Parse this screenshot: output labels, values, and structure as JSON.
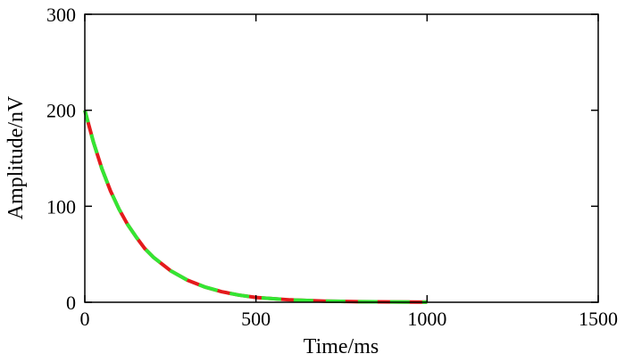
{
  "chart_data": {
    "type": "line",
    "title": "",
    "xlabel": "Time/ms",
    "ylabel": "Amplitude/nV",
    "xlim": [
      0,
      1500
    ],
    "ylim": [
      0,
      300
    ],
    "xticks": [
      0,
      500,
      1000,
      1500
    ],
    "yticks": [
      0,
      100,
      200,
      300
    ],
    "xtick_labels": [
      "0",
      "500",
      "1000",
      "1500"
    ],
    "ytick_labels": [
      "0",
      "100",
      "200",
      "300"
    ],
    "grid": false,
    "series": [
      {
        "color": "#e41a1c",
        "dash": "solid-dashed",
        "x": [
          0,
          25,
          50,
          75,
          100,
          125,
          150,
          175,
          200,
          250,
          300,
          350,
          400,
          450,
          500,
          600,
          700,
          800,
          900,
          1000
        ],
        "y": [
          200,
          167,
          139,
          116,
          97,
          81,
          68,
          56,
          47,
          33,
          23,
          16,
          11,
          7.5,
          5,
          2.5,
          1.2,
          0.6,
          0.3,
          0.1
        ]
      },
      {
        "color": "#33e633",
        "dash": "dashed",
        "x": [
          0,
          25,
          50,
          75,
          100,
          125,
          150,
          175,
          200,
          250,
          300,
          350,
          400,
          450,
          500,
          600,
          700,
          800,
          900,
          1000
        ],
        "y": [
          200,
          167,
          139,
          116,
          97,
          81,
          68,
          56,
          47,
          33,
          23,
          16,
          11,
          7.5,
          5,
          2.5,
          1.2,
          0.6,
          0.3,
          0.1
        ]
      }
    ]
  }
}
